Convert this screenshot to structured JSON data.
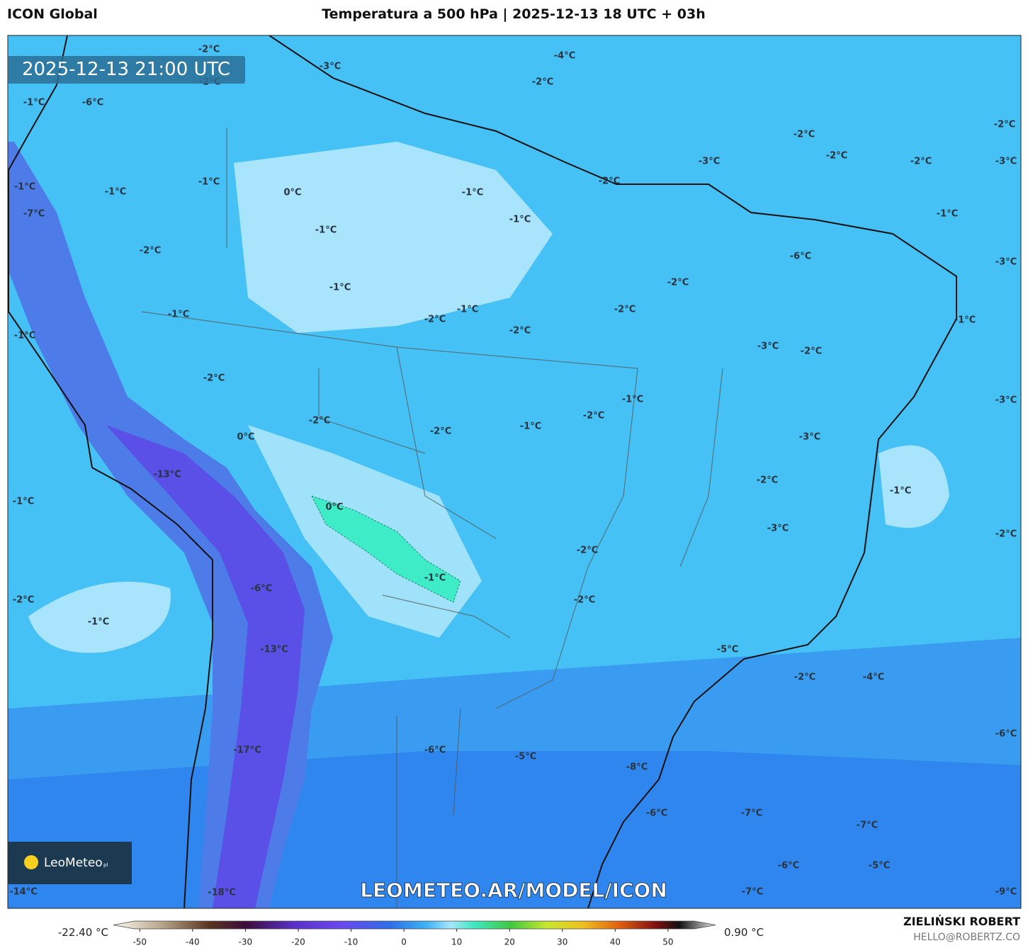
{
  "header": {
    "model": "ICON Global",
    "title": "Temperatura a 500 hPa | 2025-12-13 18 UTC + 03h"
  },
  "map": {
    "valid_time": "2025-12-13 21:00 UTC",
    "watermark": "LEOMETEO.AR/MODEL/ICON",
    "logo": "LeoMeteo",
    "logo_suffix": "pl",
    "contour_labels": [
      "-2°C",
      "-3°C",
      "-4°C",
      "-2°C",
      "-2°C",
      "-1°C",
      "-6°C",
      "-2°C",
      "-2°C",
      "-2°C",
      "-3°C",
      "-2°C",
      "-3°C",
      "-2°C",
      "-1°C",
      "-1°C",
      "-1°C",
      "0°C",
      "-1°C",
      "-7°C",
      "-1°C",
      "-1°C",
      "-1°C",
      "-2°C",
      "-6°C",
      "-3°C",
      "-2°C",
      "-1°C",
      "-1°C",
      "-2°C",
      "-1°C",
      "-2°C",
      "-1°C",
      "-2°C",
      "-1°C",
      "-3°C",
      "-2°C",
      "-2°C",
      "-1°C",
      "-3°C",
      "-2°C",
      "-2°C",
      "-1°C",
      "-2°C",
      "0°C",
      "-3°C",
      "-13°C",
      "-2°C",
      "-1°C",
      "-1°C",
      "0°C",
      "-3°C",
      "-2°C",
      "-2°C",
      "-1°C",
      "-6°C",
      "-2°C",
      "-2°C",
      "-1°C",
      "-13°C",
      "-5°C",
      "-2°C",
      "-4°C",
      "-6°C",
      "-6°C",
      "-17°C",
      "-5°C",
      "-8°C",
      "-6°C",
      "-7°C",
      "-7°C",
      "-6°C",
      "-5°C",
      "-14°C",
      "-18°C",
      "-7°C",
      "-9°C"
    ]
  },
  "colorbar": {
    "min_label": "-22.40 °C",
    "max_label": "0.90 °C",
    "lim": [
      -55,
      59
    ],
    "ticks": [
      -50,
      -40,
      -30,
      -20,
      -10,
      0,
      10,
      20,
      30,
      40,
      50
    ]
  },
  "footer": {
    "author": "ZIELIŃSKI ROBERT",
    "contact": "HELLO@ROBERTZ.CO"
  }
}
